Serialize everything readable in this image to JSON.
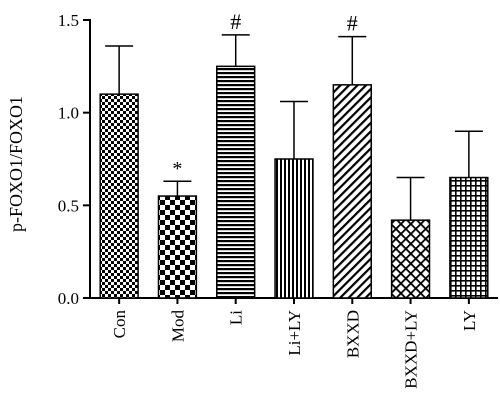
{
  "chart_data": {
    "type": "bar",
    "ylabel": "p-FOXO1/FOXO1",
    "xlabel": "",
    "ylim": [
      0,
      1.5
    ],
    "yticks": [
      "0.0",
      "0.5",
      "1.0",
      "1.5"
    ],
    "categories": [
      "Con",
      "Mod",
      "Li",
      "Li+LY",
      "BXXD",
      "BXXD+LY",
      "LY"
    ],
    "values": [
      1.1,
      0.55,
      1.25,
      0.75,
      1.15,
      0.42,
      0.65
    ],
    "errors": [
      0.26,
      0.08,
      0.17,
      0.31,
      0.26,
      0.23,
      0.25
    ],
    "annotations": [
      "",
      "*",
      "#",
      "",
      "#",
      "",
      ""
    ],
    "patterns": [
      "checker-small",
      "checker-large",
      "horizontal-lines",
      "vertical-lines",
      "diagonal-lines",
      "crosshatch-diagonal",
      "grid-small"
    ],
    "grid": false,
    "legend": "none"
  }
}
